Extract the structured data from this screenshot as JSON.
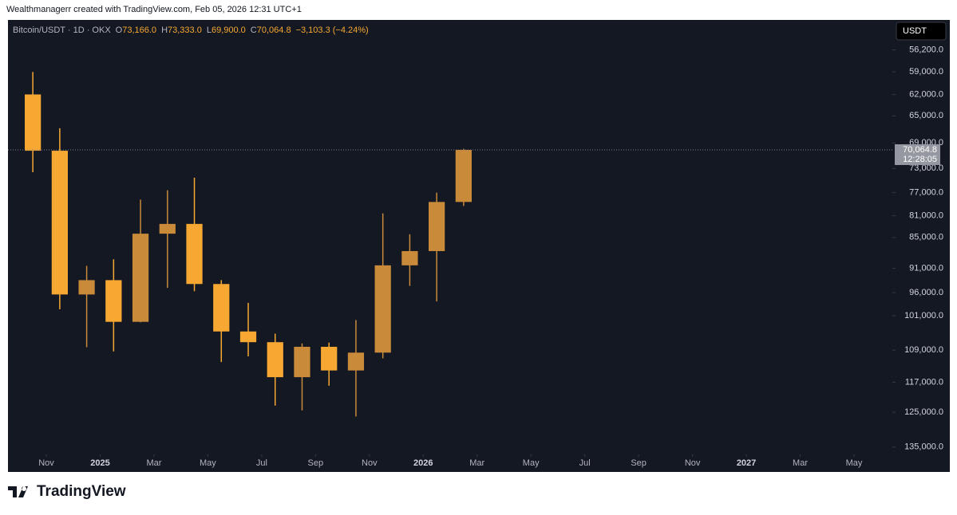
{
  "header": {
    "attribution": "Wealthmanagerr created with TradingView.com, Feb 05, 2026 12:31 UTC+1",
    "symbol": "Bitcoin/USDT · 1D · OKX",
    "o_label": "O",
    "open": "73,166.0",
    "h_label": "H",
    "high": "73,333.0",
    "l_label": "L",
    "low": "69,900.0",
    "c_label": "C",
    "close": "70,064.8",
    "change": "−3,103.3 (−4.24%)",
    "currency": "USDT"
  },
  "footer": {
    "brand": "TradingView"
  },
  "chart_data": {
    "type": "candlestick",
    "log_scale": true,
    "inverted": true,
    "up_color": "#f7a833",
    "down_color": "#c98a3a",
    "x": [
      "2024-10",
      "2024-11",
      "2024-12",
      "2025-01",
      "2025-02",
      "2025-03",
      "2025-04",
      "2025-05",
      "2025-06",
      "2025-07",
      "2025-08",
      "2025-09",
      "2025-10",
      "2025-11",
      "2025-12",
      "2026-01",
      "2026-02"
    ],
    "open": [
      62000,
      70200,
      96400,
      93400,
      102400,
      84300,
      82500,
      94200,
      104600,
      107100,
      115700,
      108200,
      114000,
      109600,
      90400,
      87600,
      78600
    ],
    "high": [
      73600,
      99600,
      108300,
      109300,
      102500,
      95000,
      95700,
      111900,
      110500,
      123200,
      124500,
      117900,
      126200,
      111000,
      94600,
      97900,
      79300
    ],
    "low": [
      59000,
      66800,
      90500,
      89200,
      78200,
      76600,
      74500,
      93400,
      98200,
      105100,
      107400,
      107200,
      102000,
      80600,
      84400,
      77000,
      69900
    ],
    "close": [
      70200,
      96400,
      93400,
      102400,
      84300,
      82500,
      94200,
      104600,
      107100,
      115700,
      108200,
      114000,
      109600,
      90400,
      87600,
      78600,
      70064.8
    ],
    "xlim": [
      "2024-11",
      "2027-05"
    ],
    "xticks": [
      {
        "value": "2024-11",
        "label": "Nov"
      },
      {
        "value": "2025-01",
        "label": "2025"
      },
      {
        "value": "2025-03",
        "label": "Mar"
      },
      {
        "value": "2025-05",
        "label": "May"
      },
      {
        "value": "2025-07",
        "label": "Jul"
      },
      {
        "value": "2025-09",
        "label": "Sep"
      },
      {
        "value": "2025-11",
        "label": "Nov"
      },
      {
        "value": "2026-01",
        "label": "2026"
      },
      {
        "value": "2026-03",
        "label": "Mar"
      },
      {
        "value": "2026-05",
        "label": "May"
      },
      {
        "value": "2026-07",
        "label": "Jul"
      },
      {
        "value": "2026-09",
        "label": "Sep"
      },
      {
        "value": "2026-11",
        "label": "Nov"
      },
      {
        "value": "2027-01",
        "label": "2027"
      },
      {
        "value": "2027-03",
        "label": "Mar"
      },
      {
        "value": "2027-05",
        "label": "May"
      }
    ],
    "ylim": [
      52600,
      137200
    ],
    "yticks": [
      {
        "value": 56200,
        "label": "56,200.0"
      },
      {
        "value": 59000,
        "label": "59,000.0"
      },
      {
        "value": 62000,
        "label": "62,000.0"
      },
      {
        "value": 65000,
        "label": "65,000.0"
      },
      {
        "value": 69000,
        "label": "69,000.0"
      },
      {
        "value": 73000,
        "label": "73,000.0"
      },
      {
        "value": 77000,
        "label": "77,000.0"
      },
      {
        "value": 81000,
        "label": "81,000.0"
      },
      {
        "value": 85000,
        "label": "85,000.0"
      },
      {
        "value": 91000,
        "label": "91,000.0"
      },
      {
        "value": 96000,
        "label": "96,000.0"
      },
      {
        "value": 101000,
        "label": "101,000.0"
      },
      {
        "value": 109000,
        "label": "109,000.0"
      },
      {
        "value": 117000,
        "label": "117,000.0"
      },
      {
        "value": 125000,
        "label": "125,000.0"
      },
      {
        "value": 135000,
        "label": "135,000.0"
      }
    ],
    "price_line": {
      "value": 70064.8,
      "label": "70,064.8",
      "countdown": "12:28:05"
    }
  }
}
